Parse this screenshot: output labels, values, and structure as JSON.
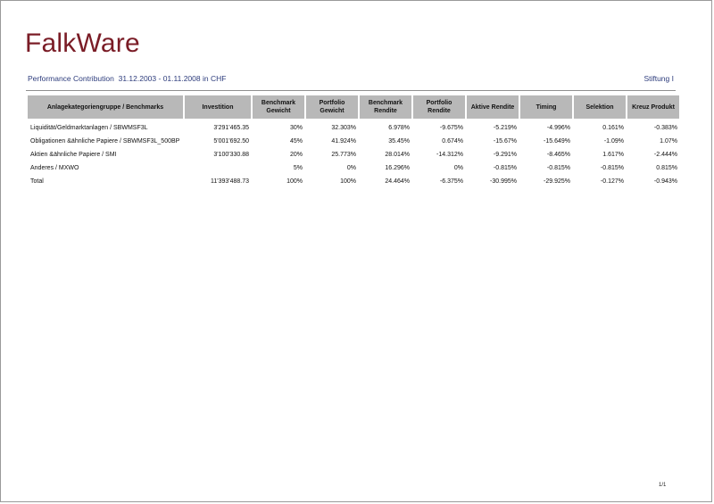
{
  "header": {
    "logo_text": "FalkWare",
    "title": "Performance Contribution",
    "period": "31.12.2003 - 01.11.2008 in CHF",
    "client": "Stiftung I"
  },
  "table": {
    "columns": [
      "Anlagekategoriengruppe / Benchmarks",
      "Investition",
      "Benchmark Gewicht",
      "Portfolio Gewicht",
      "Benchmark Rendite",
      "Portfolio Rendite",
      "Aktive Rendite",
      "Timing",
      "Selektion",
      "Kreuz Produkt"
    ],
    "rows": [
      [
        "Liquidität/Geldmarktanlagen / SBWMSF3L",
        "3'291'465.35",
        "30%",
        "32.303%",
        "6.978%",
        "-9.675%",
        "-5.219%",
        "-4.996%",
        "0.161%",
        "-0.383%"
      ],
      [
        "Obligationen &ähnliche Papiere / SBWMSF3L_500BP",
        "5'001'692.50",
        "45%",
        "41.924%",
        "35.45%",
        "0.674%",
        "-15.67%",
        "-15.649%",
        "-1.09%",
        "1.07%"
      ],
      [
        "Aktien &ähnliche Papiere / SMI",
        "3'100'330.88",
        "20%",
        "25.773%",
        "28.014%",
        "-14.312%",
        "-9.291%",
        "-8.465%",
        "1.617%",
        "-2.444%"
      ],
      [
        "Anderes / MXWO",
        "",
        "5%",
        "0%",
        "16.296%",
        "0%",
        "-0.815%",
        "-0.815%",
        "-0.815%",
        "0.815%"
      ],
      [
        "Total",
        "11'393'488.73",
        "100%",
        "100%",
        "24.464%",
        "-6.375%",
        "-30.995%",
        "-29.925%",
        "-0.127%",
        "-0.943%"
      ]
    ]
  },
  "footer": {
    "page": "1/1"
  },
  "colors": {
    "logo": "#7a1c26",
    "subtitle": "#2d3c7c",
    "header_bg": "#b8b8b8"
  }
}
